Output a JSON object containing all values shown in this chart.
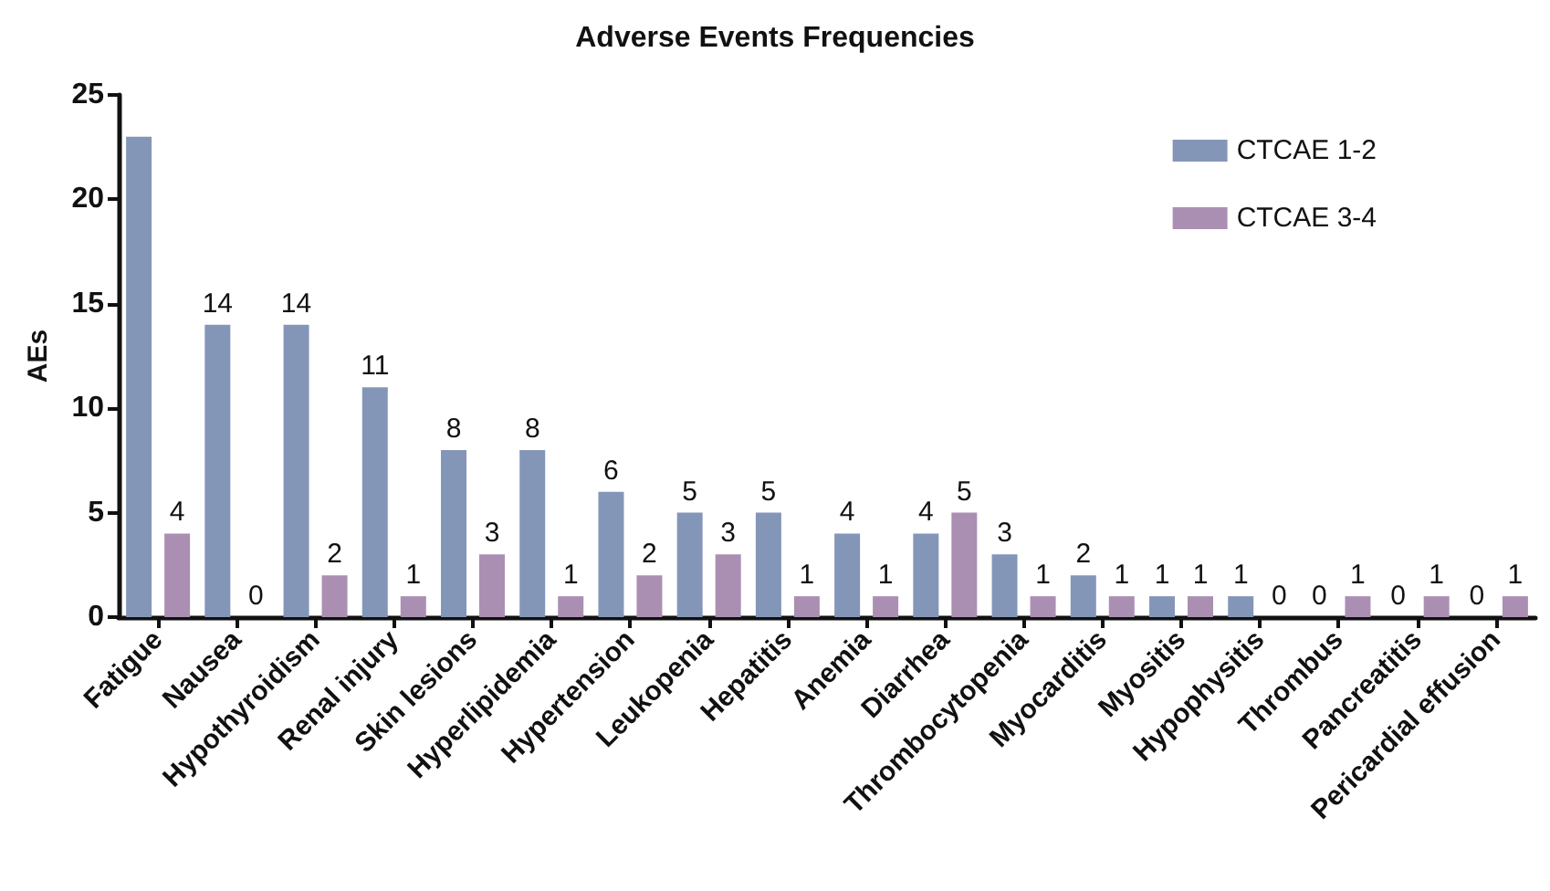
{
  "chart_data": {
    "type": "bar",
    "title": "Adverse Events Frequencies",
    "ylabel": "AEs",
    "categories": [
      "Fatigue",
      "Nausea",
      "Hypothyroidism",
      "Renal injury",
      "Skin lesions",
      "Hyperlipidemia",
      "Hypertension",
      "Leukopenia",
      "Hepatitis",
      "Anemia",
      "Diarrhea",
      "Thrombocytopenia",
      "Myocarditis",
      "Myositis",
      "Hypophysitis",
      "Thrombus",
      "Pancreatitis",
      "Pericardial effusion"
    ],
    "series": [
      {
        "name": "CTCAE 1-2",
        "color": "#8496b8",
        "values": [
          23,
          14,
          14,
          11,
          8,
          8,
          6,
          5,
          5,
          4,
          4,
          3,
          2,
          1,
          1,
          0,
          0,
          0
        ],
        "value_labels": [
          null,
          "14",
          "14",
          "11",
          "8",
          "8",
          "6",
          "5",
          "5",
          "4",
          "4",
          "3",
          "2",
          "1",
          "1",
          "0",
          "0",
          "0"
        ]
      },
      {
        "name": "CTCAE 3-4",
        "color": "#ab8fb3",
        "values": [
          4,
          0,
          2,
          1,
          3,
          1,
          2,
          3,
          1,
          1,
          5,
          1,
          1,
          1,
          0,
          1,
          1,
          1
        ],
        "value_labels": [
          "4",
          "0",
          "2",
          "1",
          "3",
          "1",
          "2",
          "3",
          "1",
          "1",
          "5",
          "1",
          "1",
          "1",
          "0",
          "1",
          "1",
          "1"
        ]
      }
    ],
    "ylim": [
      0,
      25
    ],
    "yticks": [
      0,
      5,
      10,
      15,
      20,
      25
    ],
    "grid": false,
    "legend": "top right"
  }
}
